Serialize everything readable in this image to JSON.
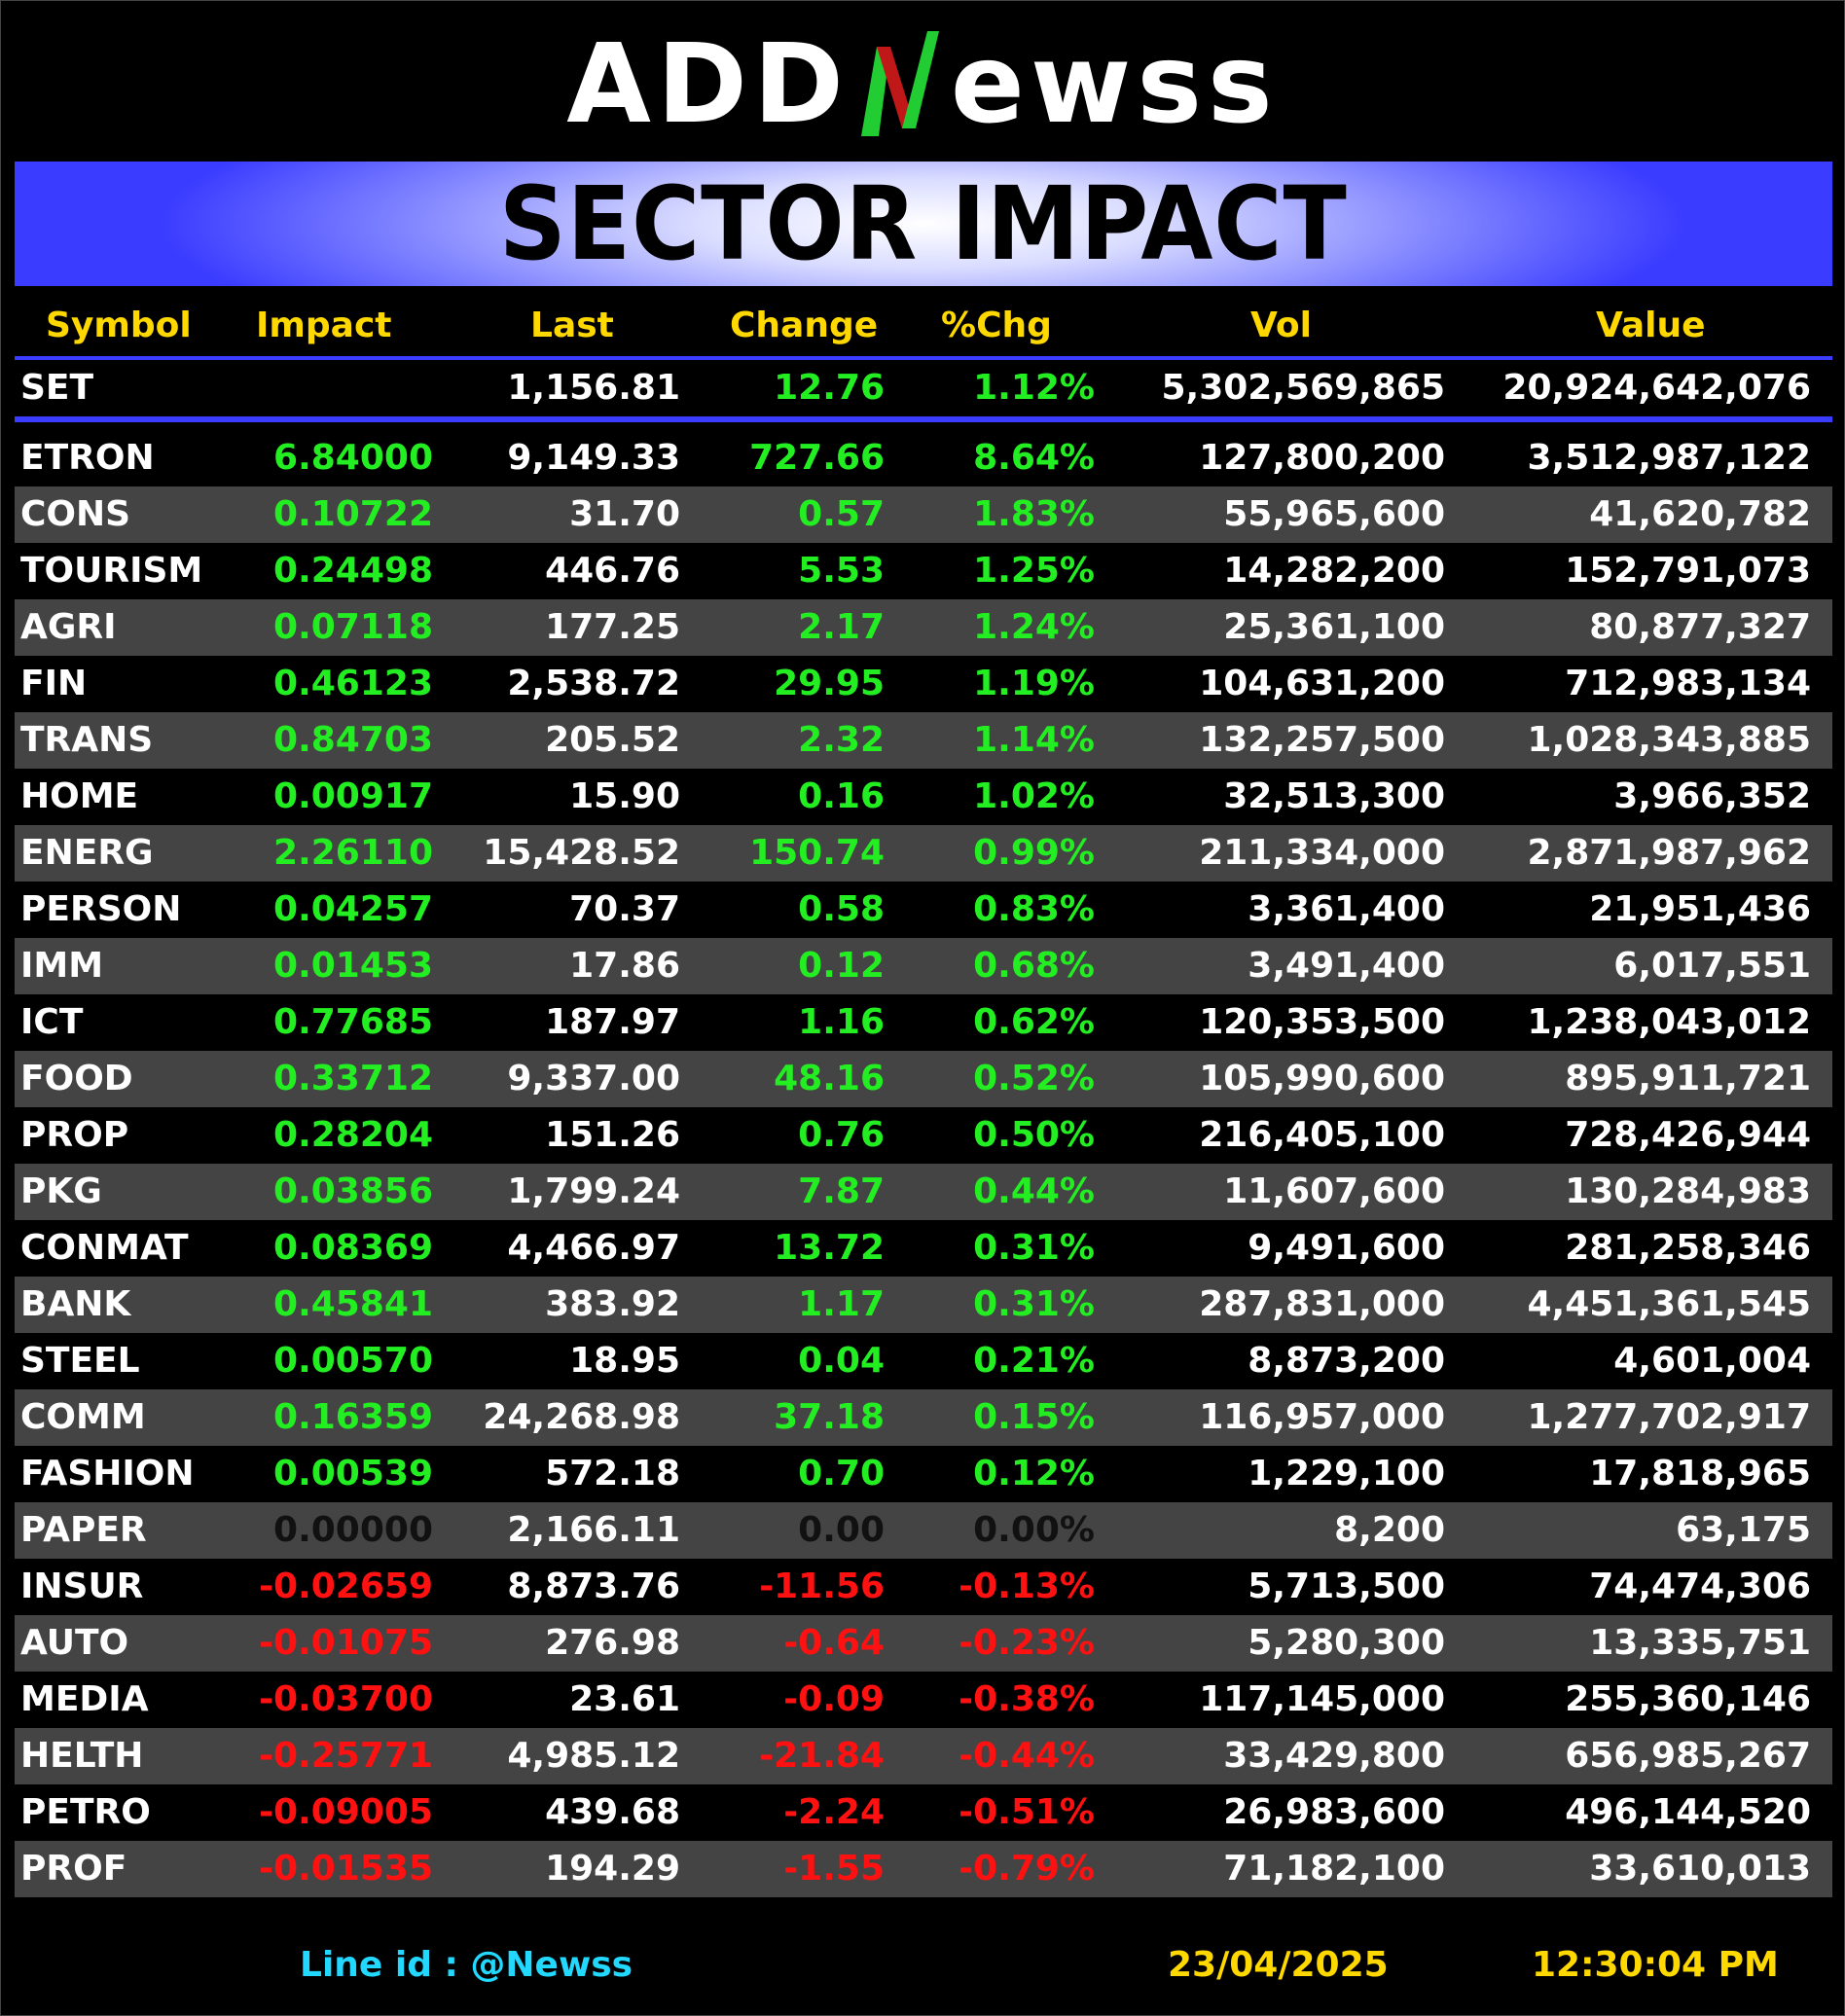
{
  "logo": {
    "part1": "ADD",
    "part2": "ewss"
  },
  "banner": {
    "title": "SECTOR IMPACT"
  },
  "headers": {
    "symbol": "Symbol",
    "impact": "Impact",
    "last": "Last",
    "change": "Change",
    "pct": "%Chg",
    "vol": "Vol",
    "value": "Value"
  },
  "set_row": {
    "symbol": "SET",
    "impact": "",
    "last": "1,156.81",
    "change": "12.76",
    "pct": "1.12%",
    "vol": "5,302,569,865",
    "value": "20,924,642,076",
    "trend": "pos"
  },
  "rows": [
    {
      "symbol": "ETRON",
      "impact": "6.84000",
      "last": "9,149.33",
      "change": "727.66",
      "pct": "8.64%",
      "vol": "127,800,200",
      "value": "3,512,987,122",
      "trend": "pos"
    },
    {
      "symbol": "CONS",
      "impact": "0.10722",
      "last": "31.70",
      "change": "0.57",
      "pct": "1.83%",
      "vol": "55,965,600",
      "value": "41,620,782",
      "trend": "pos"
    },
    {
      "symbol": "TOURISM",
      "impact": "0.24498",
      "last": "446.76",
      "change": "5.53",
      "pct": "1.25%",
      "vol": "14,282,200",
      "value": "152,791,073",
      "trend": "pos"
    },
    {
      "symbol": "AGRI",
      "impact": "0.07118",
      "last": "177.25",
      "change": "2.17",
      "pct": "1.24%",
      "vol": "25,361,100",
      "value": "80,877,327",
      "trend": "pos"
    },
    {
      "symbol": "FIN",
      "impact": "0.46123",
      "last": "2,538.72",
      "change": "29.95",
      "pct": "1.19%",
      "vol": "104,631,200",
      "value": "712,983,134",
      "trend": "pos"
    },
    {
      "symbol": "TRANS",
      "impact": "0.84703",
      "last": "205.52",
      "change": "2.32",
      "pct": "1.14%",
      "vol": "132,257,500",
      "value": "1,028,343,885",
      "trend": "pos"
    },
    {
      "symbol": "HOME",
      "impact": "0.00917",
      "last": "15.90",
      "change": "0.16",
      "pct": "1.02%",
      "vol": "32,513,300",
      "value": "3,966,352",
      "trend": "pos"
    },
    {
      "symbol": "ENERG",
      "impact": "2.26110",
      "last": "15,428.52",
      "change": "150.74",
      "pct": "0.99%",
      "vol": "211,334,000",
      "value": "2,871,987,962",
      "trend": "pos"
    },
    {
      "symbol": "PERSON",
      "impact": "0.04257",
      "last": "70.37",
      "change": "0.58",
      "pct": "0.83%",
      "vol": "3,361,400",
      "value": "21,951,436",
      "trend": "pos"
    },
    {
      "symbol": "IMM",
      "impact": "0.01453",
      "last": "17.86",
      "change": "0.12",
      "pct": "0.68%",
      "vol": "3,491,400",
      "value": "6,017,551",
      "trend": "pos"
    },
    {
      "symbol": "ICT",
      "impact": "0.77685",
      "last": "187.97",
      "change": "1.16",
      "pct": "0.62%",
      "vol": "120,353,500",
      "value": "1,238,043,012",
      "trend": "pos"
    },
    {
      "symbol": "FOOD",
      "impact": "0.33712",
      "last": "9,337.00",
      "change": "48.16",
      "pct": "0.52%",
      "vol": "105,990,600",
      "value": "895,911,721",
      "trend": "pos"
    },
    {
      "symbol": "PROP",
      "impact": "0.28204",
      "last": "151.26",
      "change": "0.76",
      "pct": "0.50%",
      "vol": "216,405,100",
      "value": "728,426,944",
      "trend": "pos"
    },
    {
      "symbol": "PKG",
      "impact": "0.03856",
      "last": "1,799.24",
      "change": "7.87",
      "pct": "0.44%",
      "vol": "11,607,600",
      "value": "130,284,983",
      "trend": "pos"
    },
    {
      "symbol": "CONMAT",
      "impact": "0.08369",
      "last": "4,466.97",
      "change": "13.72",
      "pct": "0.31%",
      "vol": "9,491,600",
      "value": "281,258,346",
      "trend": "pos"
    },
    {
      "symbol": "BANK",
      "impact": "0.45841",
      "last": "383.92",
      "change": "1.17",
      "pct": "0.31%",
      "vol": "287,831,000",
      "value": "4,451,361,545",
      "trend": "pos"
    },
    {
      "symbol": "STEEL",
      "impact": "0.00570",
      "last": "18.95",
      "change": "0.04",
      "pct": "0.21%",
      "vol": "8,873,200",
      "value": "4,601,004",
      "trend": "pos"
    },
    {
      "symbol": "COMM",
      "impact": "0.16359",
      "last": "24,268.98",
      "change": "37.18",
      "pct": "0.15%",
      "vol": "116,957,000",
      "value": "1,277,702,917",
      "trend": "pos"
    },
    {
      "symbol": "FASHION",
      "impact": "0.00539",
      "last": "572.18",
      "change": "0.70",
      "pct": "0.12%",
      "vol": "1,229,100",
      "value": "17,818,965",
      "trend": "pos"
    },
    {
      "symbol": "PAPER",
      "impact": "0.00000",
      "last": "2,166.11",
      "change": "0.00",
      "pct": "0.00%",
      "vol": "8,200",
      "value": "63,175",
      "trend": "zero"
    },
    {
      "symbol": "INSUR",
      "impact": "-0.02659",
      "last": "8,873.76",
      "change": "-11.56",
      "pct": "-0.13%",
      "vol": "5,713,500",
      "value": "74,474,306",
      "trend": "neg"
    },
    {
      "symbol": "AUTO",
      "impact": "-0.01075",
      "last": "276.98",
      "change": "-0.64",
      "pct": "-0.23%",
      "vol": "5,280,300",
      "value": "13,335,751",
      "trend": "neg"
    },
    {
      "symbol": "MEDIA",
      "impact": "-0.03700",
      "last": "23.61",
      "change": "-0.09",
      "pct": "-0.38%",
      "vol": "117,145,000",
      "value": "255,360,146",
      "trend": "neg"
    },
    {
      "symbol": "HELTH",
      "impact": "-0.25771",
      "last": "4,985.12",
      "change": "-21.84",
      "pct": "-0.44%",
      "vol": "33,429,800",
      "value": "656,985,267",
      "trend": "neg"
    },
    {
      "symbol": "PETRO",
      "impact": "-0.09005",
      "last": "439.68",
      "change": "-2.24",
      "pct": "-0.51%",
      "vol": "26,983,600",
      "value": "496,144,520",
      "trend": "neg"
    },
    {
      "symbol": "PROF",
      "impact": "-0.01535",
      "last": "194.29",
      "change": "-1.55",
      "pct": "-0.79%",
      "vol": "71,182,100",
      "value": "33,610,013",
      "trend": "neg"
    }
  ],
  "footer": {
    "line_id": "Line id  : @Newss",
    "date": "23/04/2025",
    "time": "12:30:04 PM"
  },
  "colors": {
    "positive": "#22ee22",
    "negative": "#ff1111",
    "header": "#ffd800",
    "accent": "#3a3cff",
    "line_id": "#22d8ff"
  }
}
